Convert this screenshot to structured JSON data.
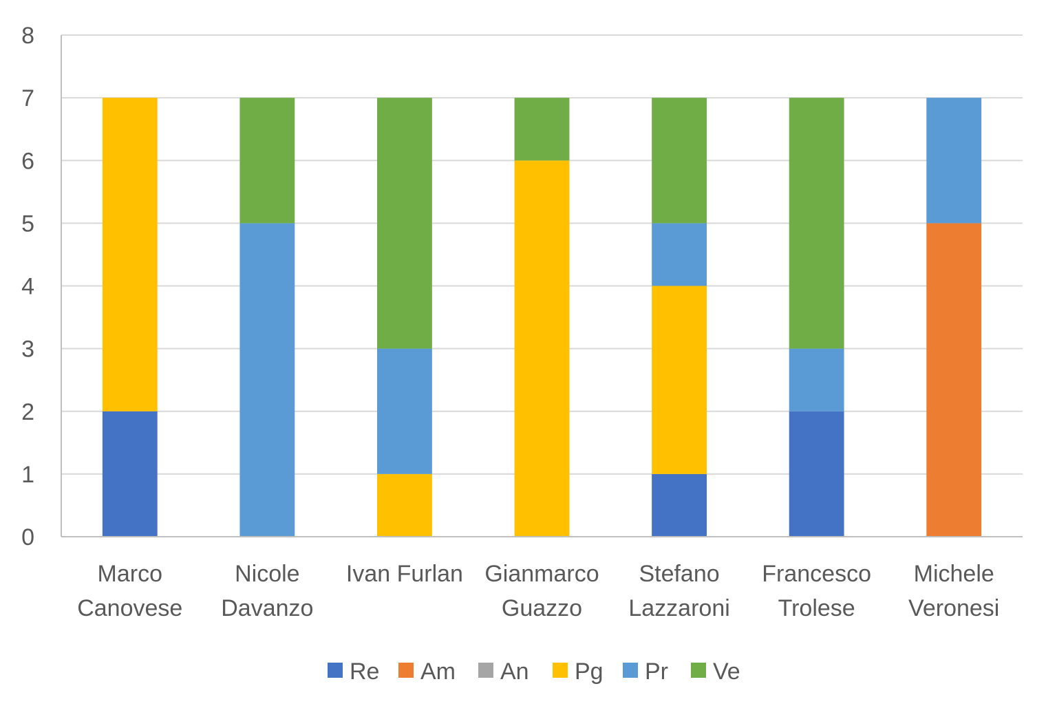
{
  "chart_data": {
    "type": "bar",
    "stacked": true,
    "categories": [
      [
        "Marco",
        "Canovese"
      ],
      [
        "Nicole",
        "Davanzo"
      ],
      [
        "Ivan Furlan"
      ],
      [
        "Gianmarco",
        "Guazzo"
      ],
      [
        "Stefano",
        "Lazzaroni"
      ],
      [
        "Francesco",
        "Trolese"
      ],
      [
        "Michele",
        "Veronesi"
      ]
    ],
    "series": [
      {
        "name": "Re",
        "color": "#4472C4",
        "values": [
          2,
          0,
          0,
          0,
          1,
          2,
          0
        ]
      },
      {
        "name": "Am",
        "color": "#ED7D31",
        "values": [
          0,
          0,
          0,
          0,
          0,
          0,
          5
        ]
      },
      {
        "name": "An",
        "color": "#A5A5A5",
        "values": [
          0,
          0,
          0,
          0,
          0,
          0,
          0
        ]
      },
      {
        "name": "Pg",
        "color": "#FFC000",
        "values": [
          5,
          0,
          1,
          6,
          3,
          0,
          0
        ]
      },
      {
        "name": "Pr",
        "color": "#5B9BD5",
        "values": [
          0,
          5,
          2,
          0,
          1,
          1,
          2
        ]
      },
      {
        "name": "Ve",
        "color": "#70AD47",
        "values": [
          0,
          2,
          4,
          1,
          2,
          4,
          0
        ]
      }
    ],
    "yticks": [
      "0",
      "1",
      "2",
      "3",
      "4",
      "5",
      "6",
      "7",
      "8"
    ],
    "ylim": [
      0,
      8
    ],
    "grid": true,
    "legend_position": "bottom",
    "title": "",
    "xlabel": "",
    "ylabel": ""
  }
}
